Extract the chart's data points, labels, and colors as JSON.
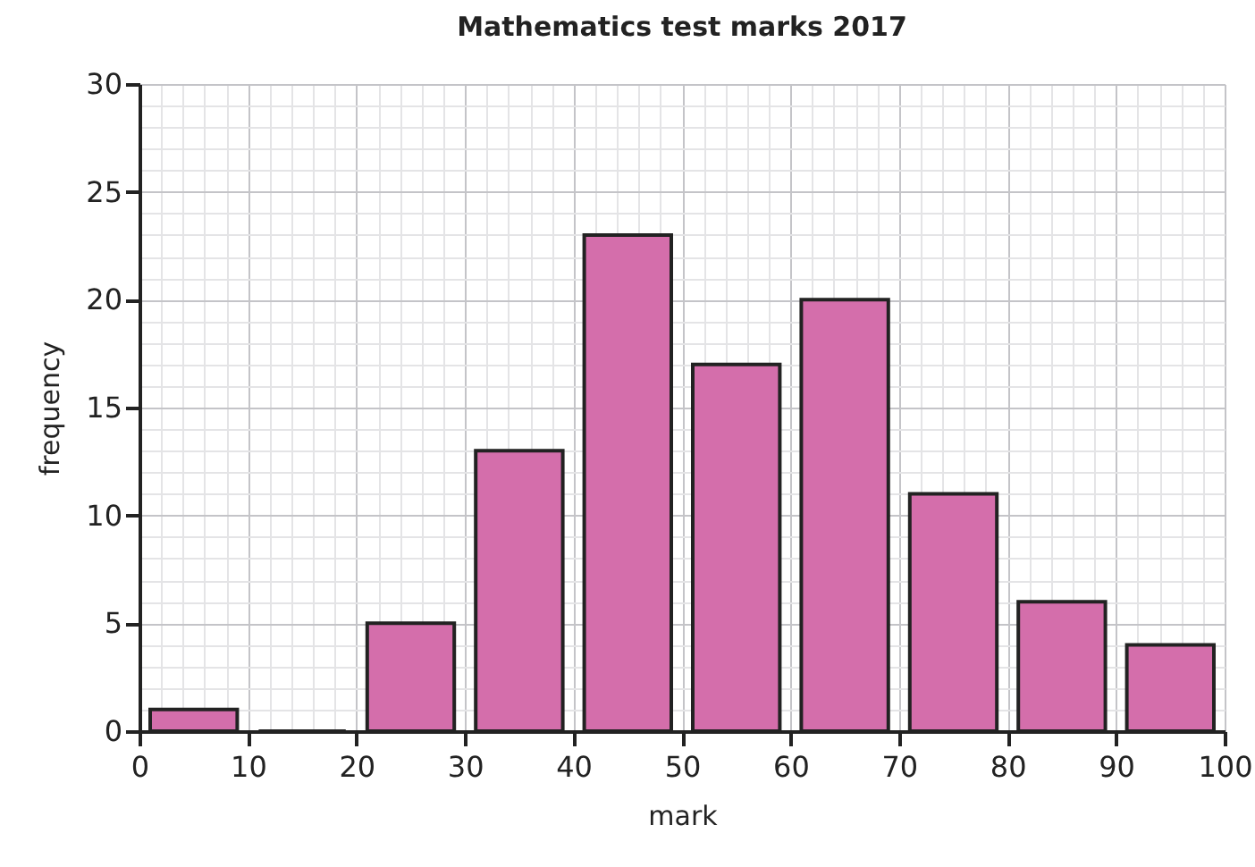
{
  "chart_data": {
    "type": "histogram",
    "title": "Mathematics test marks 2017",
    "xlabel": "mark",
    "ylabel": "frequency",
    "bins": [
      0,
      10,
      20,
      30,
      40,
      50,
      60,
      70,
      80,
      90,
      100
    ],
    "values": [
      1,
      0,
      5,
      13,
      23,
      17,
      20,
      11,
      6,
      4
    ],
    "color": "#d46eab",
    "xlim": [
      0,
      100
    ],
    "xticks": [
      0,
      10,
      20,
      30,
      40,
      50,
      60,
      70,
      80,
      90,
      100
    ],
    "ylim": [
      0,
      30
    ],
    "yticks": [
      0,
      5,
      10,
      15,
      20,
      25,
      30
    ],
    "grid": true
  }
}
